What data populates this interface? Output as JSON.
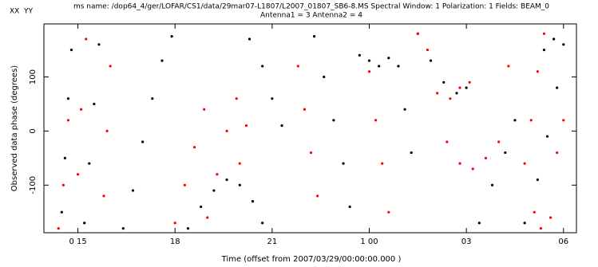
{
  "chart_data": {
    "type": "scatter",
    "title": "ms name: /dop64_4/ger/LOFAR/CS1/data/29mar07-L1807/L2007_01807_SB6-8.MS Spectral Window: 1 Polarization: 1 Fields: BEAM_0",
    "subtitle": "Antenna1 = 3 Antenna2 = 4",
    "x_label": "Time (offset from  2007/03/29/00:00:00.000 )",
    "y_label": "Observed data phase (degrees)",
    "xlim": [
      13.95,
      30.4
    ],
    "ylim": [
      -188,
      198
    ],
    "xticks": [
      {
        "value": 15,
        "label": "0 15"
      },
      18,
      21,
      {
        "value": 24,
        "label": "1 00"
      },
      {
        "value": 27,
        "label": "03"
      },
      {
        "value": 30,
        "label": "06"
      }
    ],
    "yticks": [
      -100,
      0,
      100
    ],
    "series": [
      {
        "name": "XX",
        "color": "#000000",
        "x": [
          14.5,
          14.6,
          14.7,
          14.8,
          15.2,
          15.35,
          15.5,
          15.65,
          16.4,
          16.7,
          17.0,
          17.3,
          17.6,
          17.9,
          18.4,
          18.8,
          19.2,
          19.6,
          20.0,
          20.4,
          20.7,
          20.3,
          20.7,
          21.0,
          21.3,
          22.3,
          22.6,
          22.9,
          23.2,
          23.4,
          23.7,
          24.0,
          24.3,
          24.6,
          24.9,
          25.1,
          25.3,
          25.5,
          25.9,
          26.3,
          26.7,
          27.0,
          27.4,
          27.8,
          28.2,
          28.5,
          28.8,
          29.2,
          29.5,
          29.8,
          30.0,
          29.4,
          29.7
        ],
        "values": [
          -150,
          -50,
          60,
          150,
          -170,
          -60,
          50,
          160,
          -180,
          -110,
          -20,
          60,
          130,
          175,
          -180,
          -140,
          -110,
          -90,
          -100,
          -130,
          -170,
          170,
          120,
          60,
          10,
          175,
          100,
          20,
          -60,
          -140,
          140,
          130,
          120,
          135,
          120,
          40,
          -40,
          180,
          130,
          90,
          70,
          80,
          -170,
          -100,
          -40,
          20,
          -170,
          -90,
          -10,
          80,
          160,
          150,
          170
        ]
      },
      {
        "name": "YY",
        "color": "#ff0000",
        "x": [
          14.4,
          14.55,
          14.7,
          15.0,
          15.1,
          15.25,
          15.8,
          15.9,
          16.0,
          18.0,
          18.3,
          18.6,
          18.9,
          19.0,
          19.3,
          19.6,
          19.9,
          20.0,
          20.2,
          21.8,
          22.0,
          22.2,
          22.4,
          24.0,
          24.2,
          24.4,
          24.6,
          25.5,
          25.8,
          26.1,
          26.4,
          26.8,
          27.2,
          27.6,
          28.0,
          26.5,
          26.8,
          27.1,
          28.3,
          28.8,
          29.0,
          29.2,
          29.4,
          29.1,
          29.3,
          29.6,
          29.8,
          30.0
        ],
        "values": [
          -180,
          -100,
          20,
          -80,
          40,
          170,
          -120,
          0,
          120,
          -170,
          -100,
          -30,
          40,
          -160,
          -80,
          0,
          60,
          -60,
          10,
          120,
          40,
          -40,
          -120,
          110,
          20,
          -60,
          -150,
          180,
          150,
          70,
          -20,
          -60,
          -70,
          -50,
          -20,
          60,
          80,
          90,
          120,
          -60,
          20,
          110,
          180,
          -150,
          -180,
          -160,
          -40,
          20
        ]
      }
    ]
  }
}
